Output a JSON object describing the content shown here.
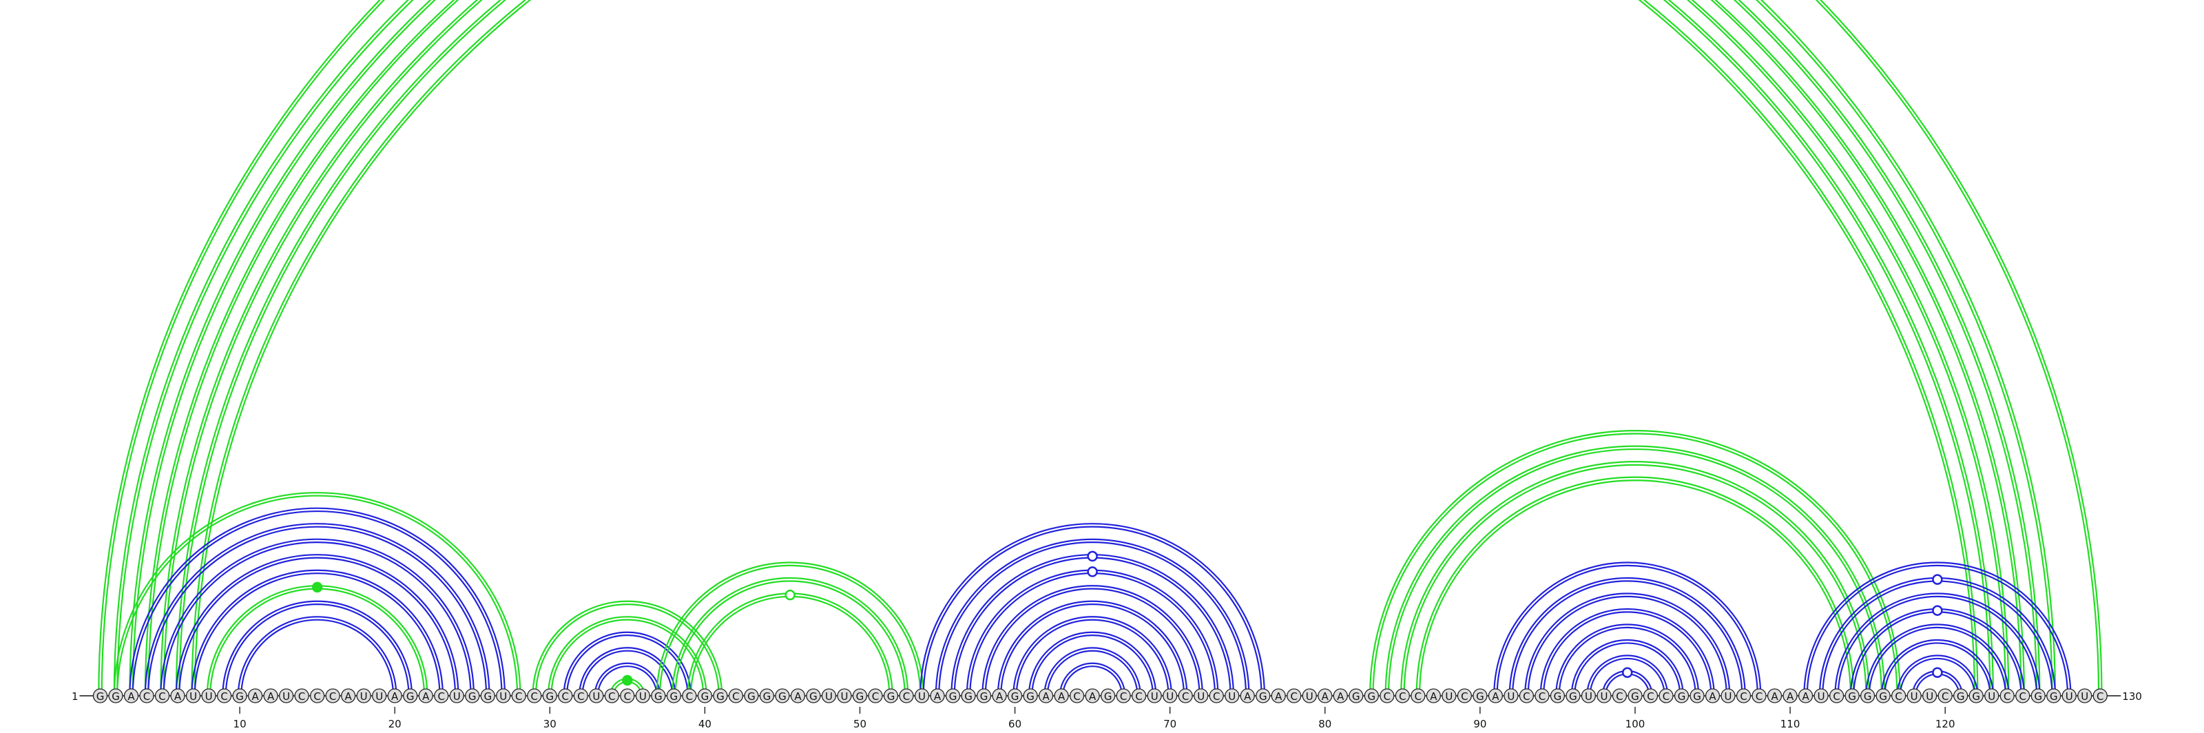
{
  "diagram": {
    "sequence": "GGACCAUUCGAAUCCCAUUAGACUGGUCCGCCUCCUGGCGGCGGGAGUUGCGCUAGGGAGGAACAGCCUUCUCUAGACUAAGGCCCAUCGAUCCGGUUCGCCGGAUCCAAAUCGGGCUUCGGUCCGGUUC",
    "start_label": "1",
    "end_label": "130",
    "tick_labels": [
      "10",
      "20",
      "30",
      "40",
      "50",
      "60",
      "70",
      "80",
      "90",
      "100",
      "110",
      "120"
    ],
    "colors": {
      "green": "#22dd22",
      "blue": "#2222dd"
    },
    "arcs": [
      {
        "i": 1,
        "j": 130,
        "color": "green",
        "double": true
      },
      {
        "i": 2,
        "j": 127,
        "color": "green",
        "double": true
      },
      {
        "i": 3,
        "j": 126,
        "color": "green",
        "double": true
      },
      {
        "i": 4,
        "j": 125,
        "color": "green",
        "double": true
      },
      {
        "i": 5,
        "j": 124,
        "color": "green",
        "double": true
      },
      {
        "i": 6,
        "j": 123,
        "color": "green",
        "double": true
      },
      {
        "i": 7,
        "j": 122,
        "color": "green",
        "double": true
      },
      {
        "i": 2,
        "j": 28,
        "color": "green",
        "double": true
      },
      {
        "i": 3,
        "j": 27,
        "color": "blue",
        "double": true
      },
      {
        "i": 4,
        "j": 26,
        "color": "blue",
        "double": true
      },
      {
        "i": 5,
        "j": 25,
        "color": "blue",
        "double": true
      },
      {
        "i": 6,
        "j": 24,
        "color": "blue",
        "double": true
      },
      {
        "i": 7,
        "j": 23,
        "color": "blue",
        "double": true
      },
      {
        "i": 8,
        "j": 22,
        "color": "green",
        "double": true
      },
      {
        "i": 9,
        "j": 21,
        "color": "blue",
        "double": true
      },
      {
        "i": 10,
        "j": 20,
        "color": "blue",
        "double": true
      },
      {
        "i": 29,
        "j": 41,
        "color": "green",
        "double": true
      },
      {
        "i": 30,
        "j": 40,
        "color": "green",
        "double": true
      },
      {
        "i": 31,
        "j": 39,
        "color": "blue",
        "double": true
      },
      {
        "i": 32,
        "j": 38,
        "color": "blue",
        "double": true
      },
      {
        "i": 33,
        "j": 37,
        "color": "blue",
        "double": true
      },
      {
        "i": 34,
        "j": 36,
        "color": "green",
        "double": true
      },
      {
        "i": 37,
        "j": 54,
        "color": "green",
        "double": true
      },
      {
        "i": 38,
        "j": 53,
        "color": "green",
        "double": true
      },
      {
        "i": 39,
        "j": 52,
        "color": "green",
        "double": true
      },
      {
        "i": 54,
        "j": 76,
        "color": "blue",
        "double": true
      },
      {
        "i": 55,
        "j": 75,
        "color": "blue",
        "double": true
      },
      {
        "i": 56,
        "j": 74,
        "color": "blue",
        "double": true
      },
      {
        "i": 57,
        "j": 73,
        "color": "blue",
        "double": true
      },
      {
        "i": 58,
        "j": 72,
        "color": "blue",
        "double": true
      },
      {
        "i": 59,
        "j": 71,
        "color": "blue",
        "double": true
      },
      {
        "i": 60,
        "j": 70,
        "color": "blue",
        "double": true
      },
      {
        "i": 61,
        "j": 69,
        "color": "blue",
        "double": true
      },
      {
        "i": 62,
        "j": 68,
        "color": "blue",
        "double": true
      },
      {
        "i": 63,
        "j": 67,
        "color": "blue",
        "double": true
      },
      {
        "i": 83,
        "j": 117,
        "color": "green",
        "double": true
      },
      {
        "i": 84,
        "j": 116,
        "color": "green",
        "double": true
      },
      {
        "i": 85,
        "j": 115,
        "color": "green",
        "double": true
      },
      {
        "i": 86,
        "j": 114,
        "color": "green",
        "double": true
      },
      {
        "i": 91,
        "j": 108,
        "color": "blue",
        "double": true
      },
      {
        "i": 92,
        "j": 107,
        "color": "blue",
        "double": true
      },
      {
        "i": 93,
        "j": 106,
        "color": "blue",
        "double": true
      },
      {
        "i": 94,
        "j": 105,
        "color": "blue",
        "double": true
      },
      {
        "i": 95,
        "j": 104,
        "color": "blue",
        "double": true
      },
      {
        "i": 96,
        "j": 103,
        "color": "blue",
        "double": true
      },
      {
        "i": 97,
        "j": 102,
        "color": "blue",
        "double": true
      },
      {
        "i": 98,
        "j": 101,
        "color": "blue",
        "double": true
      },
      {
        "i": 111,
        "j": 128,
        "color": "blue",
        "double": true
      },
      {
        "i": 112,
        "j": 127,
        "color": "blue",
        "double": true
      },
      {
        "i": 113,
        "j": 126,
        "color": "blue",
        "double": true
      },
      {
        "i": 114,
        "j": 125,
        "color": "blue",
        "double": true
      },
      {
        "i": 115,
        "j": 124,
        "color": "blue",
        "double": true
      },
      {
        "i": 116,
        "j": 123,
        "color": "blue",
        "double": true
      },
      {
        "i": 117,
        "j": 122,
        "color": "blue",
        "double": true
      },
      {
        "i": 118,
        "j": 121,
        "color": "blue",
        "double": true
      }
    ],
    "markers": [
      {
        "i": 1,
        "j": 130,
        "color": "green",
        "fill": "open"
      },
      {
        "i": 8,
        "j": 22,
        "color": "green",
        "fill": "solid"
      },
      {
        "i": 34,
        "j": 36,
        "color": "green",
        "fill": "solid"
      },
      {
        "i": 39,
        "j": 52,
        "color": "green",
        "fill": "open"
      },
      {
        "i": 56,
        "j": 74,
        "color": "blue",
        "fill": "open"
      },
      {
        "i": 57,
        "j": 73,
        "color": "blue",
        "fill": "open"
      },
      {
        "i": 98,
        "j": 101,
        "color": "blue",
        "fill": "open"
      },
      {
        "i": 112,
        "j": 127,
        "color": "blue",
        "fill": "open"
      },
      {
        "i": 114,
        "j": 125,
        "color": "blue",
        "fill": "open"
      },
      {
        "i": 118,
        "j": 121,
        "color": "blue",
        "fill": "open"
      }
    ]
  }
}
